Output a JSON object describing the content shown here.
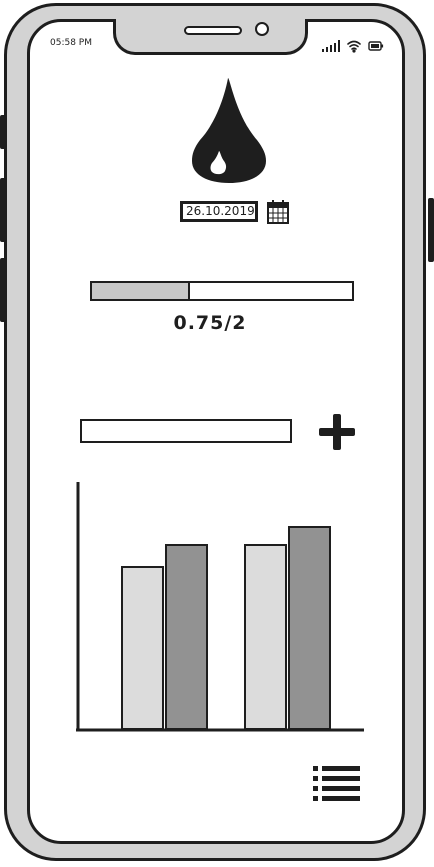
{
  "status_bar": {
    "time": "05:58 PM",
    "icons": [
      "signal-icon",
      "wifi-icon",
      "battery-icon"
    ]
  },
  "header": {
    "icon": "water-drop-icon"
  },
  "date_picker": {
    "value": "26.10.2019",
    "icon": "calendar-icon"
  },
  "progress": {
    "current": 0.75,
    "goal": 2,
    "label": "0.75/2"
  },
  "add_entry": {
    "value": "",
    "placeholder": "",
    "button_icon": "plus-icon"
  },
  "chart_data": {
    "type": "bar",
    "categories": [
      "",
      ""
    ],
    "series": [
      {
        "values": [
          162,
          184
        ],
        "color": "#dcdcdc"
      },
      {
        "values": [
          184,
          202
        ],
        "color": "#929292"
      }
    ],
    "ylim": [
      0,
      245
    ],
    "grid": false
  },
  "footer": {
    "menu_icon": "list-menu-icon"
  },
  "colors": {
    "ink": "#1e1e1e",
    "frame": "#d3d3d3",
    "progress_fill": "#c8c8c8",
    "bar_light": "#dcdcdc",
    "bar_dark": "#929292"
  }
}
